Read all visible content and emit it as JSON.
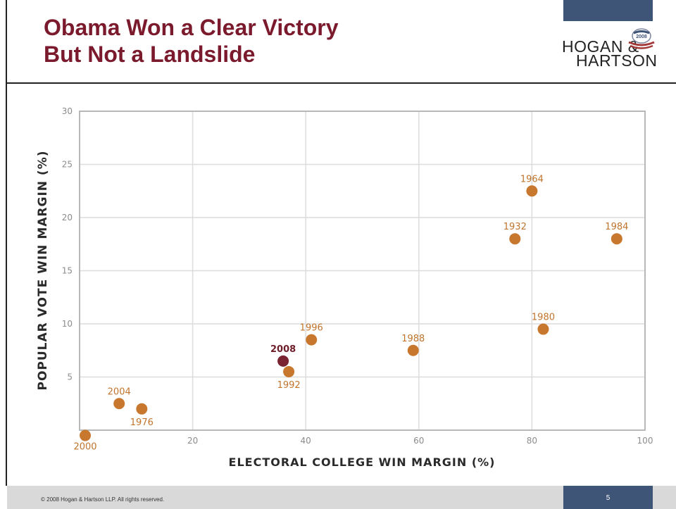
{
  "header": {
    "title_line1": "Obama Won a Clear Victory",
    "title_line2": "But Not a Landslide"
  },
  "logo": {
    "line1": "HOGAN &",
    "line2": "HARTSON",
    "badge_icon": "election-badge-icon",
    "badge_text": "2008"
  },
  "footer": {
    "copyright": "© 2008 Hogan & Hartson LLP. All rights reserved.",
    "page_number": "5"
  },
  "colors": {
    "title": "#7a1a2c",
    "point": "#c8782e",
    "highlight_point": "#7a2433",
    "header_tab": "#3f5577",
    "footer_band": "#d9d9d9",
    "grid": "#dcdcdc"
  },
  "chart_data": {
    "type": "scatter",
    "xlabel": "ELECTORAL COLLEGE WIN MARGIN (%)",
    "ylabel": "POPULAR VOTE WIN MARGIN (%)",
    "xlim": [
      0,
      100
    ],
    "ylim": [
      0,
      30
    ],
    "xticks": [
      "20",
      "40",
      "60",
      "80",
      "100"
    ],
    "yticks": [
      "5",
      "10",
      "15",
      "20",
      "25",
      "30"
    ],
    "grid": true,
    "points": [
      {
        "label": "2000",
        "x": 1,
        "y": -0.5
      },
      {
        "label": "2004",
        "x": 7,
        "y": 2.5
      },
      {
        "label": "1976",
        "x": 11,
        "y": 2.0
      },
      {
        "label": "2008",
        "x": 36,
        "y": 6.5,
        "highlight": true
      },
      {
        "label": "1992",
        "x": 37,
        "y": 5.5
      },
      {
        "label": "1996",
        "x": 41,
        "y": 8.5
      },
      {
        "label": "1988",
        "x": 59,
        "y": 7.5
      },
      {
        "label": "1932",
        "x": 77,
        "y": 18.0
      },
      {
        "label": "1964",
        "x": 80,
        "y": 22.5
      },
      {
        "label": "1980",
        "x": 82,
        "y": 9.5
      },
      {
        "label": "1984",
        "x": 95,
        "y": 18.0
      }
    ]
  }
}
